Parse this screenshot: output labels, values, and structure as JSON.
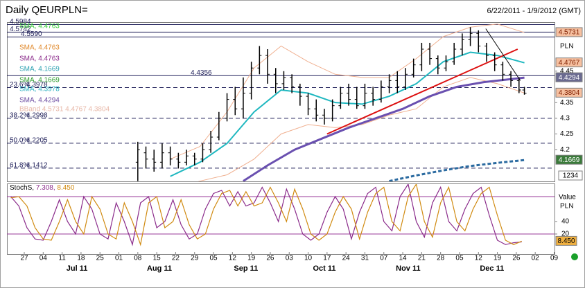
{
  "chart_data": {
    "type": "candlestick",
    "title": "Daily QEURPLN=",
    "date_range": "6/22/2011 - 1/9/2012 (GMT)",
    "currency": "PLN",
    "xlim": [
      0,
      201
    ],
    "xticks": [
      {
        "value": 5,
        "label": "27"
      },
      {
        "value": 12,
        "label": "04"
      },
      {
        "value": 19,
        "label": "11"
      },
      {
        "value": 26,
        "label": "18"
      },
      {
        "value": 33,
        "label": "25"
      },
      {
        "value": 40,
        "label": "01"
      },
      {
        "value": 47,
        "label": "08"
      },
      {
        "value": 54,
        "label": "15"
      },
      {
        "value": 61,
        "label": "22"
      },
      {
        "value": 68,
        "label": "29"
      },
      {
        "value": 75,
        "label": "05"
      },
      {
        "value": 82,
        "label": "12"
      },
      {
        "value": 89,
        "label": "19"
      },
      {
        "value": 96,
        "label": "26"
      },
      {
        "value": 103,
        "label": "03"
      },
      {
        "value": 110,
        "label": "10"
      },
      {
        "value": 117,
        "label": "17"
      },
      {
        "value": 124,
        "label": "24"
      },
      {
        "value": 131,
        "label": "31"
      },
      {
        "value": 138,
        "label": "07"
      },
      {
        "value": 145,
        "label": "14"
      },
      {
        "value": 152,
        "label": "21"
      },
      {
        "value": 159,
        "label": "28"
      },
      {
        "value": 166,
        "label": "05"
      },
      {
        "value": 173,
        "label": "12"
      },
      {
        "value": 180,
        "label": "19"
      },
      {
        "value": 187,
        "label": "26"
      },
      {
        "value": 194,
        "label": "02"
      },
      {
        "value": 201,
        "label": "09"
      }
    ],
    "month_labels": [
      {
        "value": 24.5,
        "label": "Jul 11"
      },
      {
        "value": 55,
        "label": "Aug 11"
      },
      {
        "value": 87,
        "label": "Sep 11"
      },
      {
        "value": 116,
        "label": "Oct 11"
      },
      {
        "value": 147,
        "label": "Nov 11"
      },
      {
        "value": 178,
        "label": "Dec 11"
      }
    ],
    "ylim": [
      4.099,
      4.606
    ],
    "yticks": [
      4.45,
      4.35,
      4.3,
      4.25,
      4.2
    ],
    "candles": {
      "x": [
        47,
        50,
        53,
        56,
        59,
        62,
        65,
        68,
        71,
        74,
        77,
        80,
        83,
        86,
        89,
        92,
        95,
        98,
        101,
        104,
        107,
        110,
        113,
        116,
        119,
        122,
        125,
        128,
        131,
        134,
        137,
        140,
        143,
        146,
        149,
        152,
        155,
        158,
        161,
        164,
        167,
        170,
        173,
        176,
        179,
        182,
        185,
        188,
        190
      ],
      "open": [
        4.16,
        4.19,
        4.17,
        4.16,
        4.19,
        4.17,
        4.16,
        4.18,
        4.17,
        4.2,
        4.24,
        4.3,
        4.36,
        4.33,
        4.38,
        4.46,
        4.5,
        4.44,
        4.41,
        4.43,
        4.4,
        4.37,
        4.33,
        4.31,
        4.3,
        4.34,
        4.38,
        4.36,
        4.34,
        4.38,
        4.36,
        4.4,
        4.42,
        4.4,
        4.44,
        4.47,
        4.52,
        4.49,
        4.46,
        4.48,
        4.52,
        4.55,
        4.57,
        4.53,
        4.5,
        4.47,
        4.44,
        4.42,
        4.39
      ],
      "high": [
        4.225,
        4.21,
        4.2,
        4.22,
        4.21,
        4.19,
        4.2,
        4.19,
        4.22,
        4.26,
        4.32,
        4.38,
        4.4,
        4.43,
        4.48,
        4.53,
        4.52,
        4.46,
        4.45,
        4.44,
        4.41,
        4.38,
        4.36,
        4.33,
        4.36,
        4.4,
        4.41,
        4.4,
        4.41,
        4.4,
        4.42,
        4.44,
        4.45,
        4.46,
        4.49,
        4.54,
        4.54,
        4.5,
        4.5,
        4.54,
        4.57,
        4.59,
        4.58,
        4.54,
        4.51,
        4.48,
        4.45,
        4.43,
        4.4
      ],
      "low": [
        4.1,
        4.14,
        4.13,
        4.14,
        4.15,
        4.14,
        4.15,
        4.15,
        4.16,
        4.19,
        4.23,
        4.29,
        4.31,
        4.3,
        4.36,
        4.44,
        4.41,
        4.38,
        4.39,
        4.38,
        4.34,
        4.31,
        4.29,
        4.28,
        4.29,
        4.33,
        4.34,
        4.33,
        4.33,
        4.34,
        4.35,
        4.38,
        4.38,
        4.39,
        4.43,
        4.45,
        4.47,
        4.44,
        4.45,
        4.47,
        4.5,
        4.53,
        4.51,
        4.48,
        4.45,
        4.42,
        4.4,
        4.38,
        4.375
      ],
      "close": [
        4.2,
        4.17,
        4.16,
        4.19,
        4.17,
        4.16,
        4.18,
        4.17,
        4.2,
        4.24,
        4.3,
        4.36,
        4.33,
        4.38,
        4.46,
        4.5,
        4.44,
        4.41,
        4.43,
        4.4,
        4.37,
        4.33,
        4.31,
        4.3,
        4.34,
        4.38,
        4.36,
        4.34,
        4.38,
        4.36,
        4.4,
        4.42,
        4.4,
        4.44,
        4.47,
        4.52,
        4.49,
        4.46,
        4.48,
        4.52,
        4.55,
        4.57,
        4.53,
        4.5,
        4.47,
        4.44,
        4.42,
        4.39,
        4.38
      ]
    },
    "fib_levels": [
      {
        "value": 4.5984,
        "dashed": false
      },
      {
        "value": 4.5742,
        "dashed": false
      },
      {
        "value": 4.559,
        "label": "4.5590",
        "dashed": false
      },
      {
        "value": 4.4356,
        "dashed": false
      },
      {
        "pct": "23.6%",
        "value": 4.3978,
        "dashed": true
      },
      {
        "pct": "38.2%",
        "value": 4.2998,
        "dashed": true
      },
      {
        "pct": "50.0%",
        "value": 4.2205,
        "dashed": true
      },
      {
        "pct": "61.8%",
        "value": 4.1412,
        "dashed": true
      }
    ],
    "legend": [
      {
        "text": "SMA, 4.4763",
        "color": "#33cc33"
      },
      {
        "text": "SMA, 4.4763",
        "color": "#e0882a"
      },
      {
        "text": "SMA, 4.4763",
        "color": "#8a2a8a"
      },
      {
        "text": "SMA, 4.1669",
        "color": "#2aa0b0"
      },
      {
        "text": "SMA, 4.1669",
        "color": "#2a9a2a"
      },
      {
        "text": "SMA, 4.3978",
        "color": "#2ab0c0"
      },
      {
        "text": "SMA, 4.4294",
        "color": "#6a4aa0"
      },
      {
        "text": "BBand 4.5731 4.4767 4.3804",
        "color": "#e8b8a8"
      }
    ],
    "overlays": [
      {
        "color": "#f0b090",
        "width": 1,
        "dash": false,
        "x": [
          59,
          70,
          80,
          90,
          100,
          110,
          120,
          130,
          140,
          150,
          160,
          170,
          180,
          190
        ],
        "values": [
          4.17,
          4.21,
          4.32,
          4.46,
          4.53,
          4.48,
          4.44,
          4.43,
          4.43,
          4.49,
          4.56,
          4.59,
          4.6,
          4.5731
        ]
      },
      {
        "color": "#f0b090",
        "width": 1,
        "dash": false,
        "x": [
          59,
          70,
          80,
          90,
          100,
          110,
          120,
          130,
          140,
          150,
          160,
          170,
          180,
          190
        ],
        "values": [
          4.07,
          4.1,
          4.12,
          4.17,
          4.25,
          4.28,
          4.27,
          4.28,
          4.31,
          4.33,
          4.4,
          4.43,
          4.41,
          4.3804
        ]
      },
      {
        "color": "#20b8c0",
        "width": 2,
        "dash": false,
        "x": [
          59,
          70,
          80,
          90,
          100,
          110,
          120,
          130,
          140,
          150,
          160,
          170,
          180,
          190
        ],
        "values": [
          4.115,
          4.16,
          4.22,
          4.32,
          4.39,
          4.38,
          4.35,
          4.345,
          4.37,
          4.41,
          4.48,
          4.51,
          4.5,
          4.4767
        ]
      },
      {
        "color": "#6a50b0",
        "width": 3,
        "dash": false,
        "x": [
          86,
          95,
          105,
          115,
          125,
          135,
          145,
          155,
          165,
          175,
          190
        ],
        "values": [
          4.1,
          4.15,
          4.2,
          4.235,
          4.27,
          4.3,
          4.33,
          4.37,
          4.4,
          4.415,
          4.4294
        ]
      },
      {
        "color": "#2a6aa0",
        "width": 3,
        "dash": true,
        "x": [
          140,
          150,
          160,
          170,
          180,
          190
        ],
        "values": [
          4.1,
          4.118,
          4.134,
          4.148,
          4.158,
          4.1669
        ]
      },
      {
        "color": "#dd1111",
        "width": 2,
        "dash": false,
        "x": [
          117,
          187.5
        ],
        "values": [
          4.25,
          4.52
        ]
      },
      {
        "color": "#000000",
        "width": 1,
        "dash": false,
        "x": [
          175.7,
          188.5
        ],
        "values": [
          4.585,
          4.42
        ]
      }
    ],
    "price_labels": [
      {
        "value": 4.5731,
        "bg": "#f6c0a0",
        "fg": "#802000"
      },
      {
        "value": 4.4767,
        "bg": "#f6c0a0",
        "fg": "#802000"
      },
      {
        "value": 4.4294,
        "bg": "#6a6a90",
        "fg": "#ffffff"
      },
      {
        "value": 4.3804,
        "bg": "#f6c0a0",
        "fg": "#802000"
      },
      {
        "value": 4.1669,
        "bg": "#3a7a3a",
        "fg": "#ffffff"
      }
    ],
    "info_box": "1234",
    "stoch": {
      "legend": [
        {
          "text": "StochS, ",
          "color": "#000000"
        },
        {
          "text": "7.308, ",
          "color": "#8a2a8a"
        },
        {
          "text": "8.450",
          "color": "#d08a10"
        }
      ],
      "header": "Value",
      "currency": "PLN",
      "ylim": [
        -10,
        100
      ],
      "yticks": [
        40,
        20
      ],
      "levels": [
        80,
        20
      ],
      "x": [
        0,
        3,
        6,
        9,
        12,
        15,
        18,
        21,
        24,
        27,
        30,
        33,
        36,
        39,
        42,
        45,
        48,
        51,
        54,
        57,
        60,
        63,
        66,
        69,
        72,
        75,
        78,
        81,
        84,
        87,
        90,
        93,
        96,
        99,
        102,
        105,
        108,
        111,
        114,
        117,
        120,
        123,
        126,
        129,
        132,
        135,
        138,
        141,
        144,
        147,
        150,
        153,
        156,
        159,
        162,
        165,
        168,
        171,
        174,
        177,
        180,
        183,
        186,
        189
      ],
      "k": [
        80,
        65,
        30,
        12,
        10,
        40,
        75,
        40,
        20,
        80,
        60,
        20,
        12,
        70,
        40,
        3,
        70,
        80,
        30,
        40,
        75,
        35,
        12,
        20,
        60,
        85,
        90,
        65,
        88,
        65,
        70,
        95,
        70,
        40,
        92,
        60,
        20,
        10,
        20,
        55,
        80,
        60,
        12,
        55,
        85,
        95,
        40,
        25,
        80,
        100,
        40,
        15,
        70,
        95,
        40,
        25,
        60,
        85,
        95,
        50,
        10,
        3,
        6,
        7.308
      ],
      "d": [
        78,
        80,
        65,
        30,
        12,
        10,
        40,
        75,
        40,
        20,
        80,
        60,
        20,
        12,
        70,
        40,
        3,
        70,
        80,
        30,
        40,
        75,
        35,
        12,
        20,
        60,
        85,
        90,
        65,
        88,
        65,
        70,
        95,
        70,
        40,
        92,
        60,
        20,
        10,
        20,
        55,
        80,
        60,
        12,
        55,
        85,
        95,
        40,
        25,
        80,
        100,
        40,
        15,
        70,
        95,
        40,
        25,
        60,
        85,
        95,
        50,
        10,
        3,
        8.45
      ],
      "k_color": "#8a2a8a",
      "d_color": "#d08a10",
      "last_label": {
        "value": 8.45,
        "label": "8.450"
      }
    }
  }
}
